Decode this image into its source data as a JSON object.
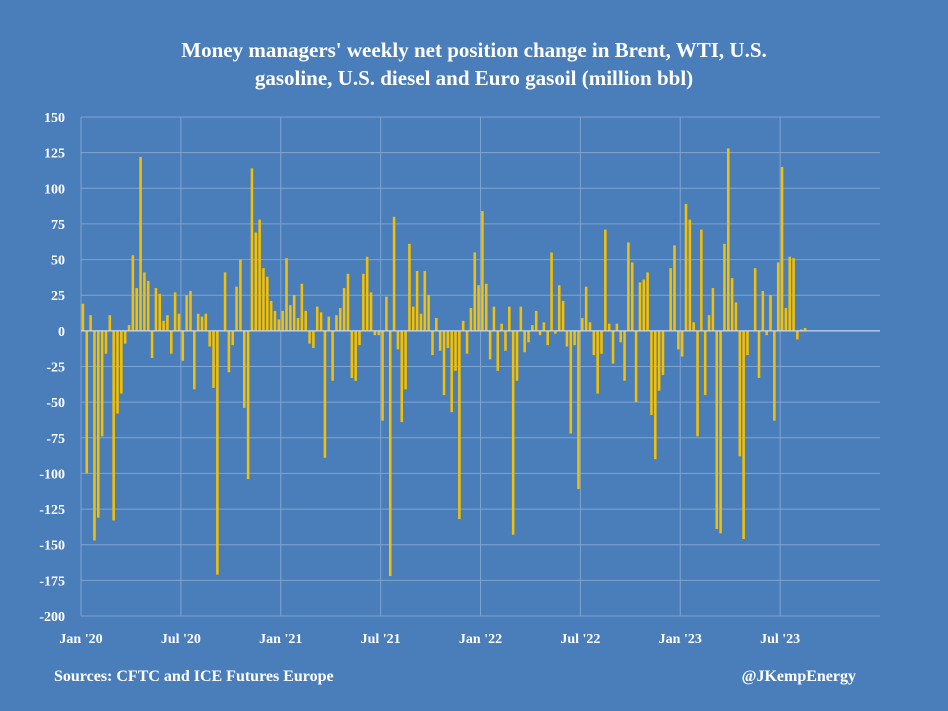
{
  "colors": {
    "background": "#4a7ebb",
    "bar": "#f5c000",
    "grid": "#7fa3cf",
    "zero_line": "#c9d7ea",
    "text": "#ffffff"
  },
  "footer": {
    "source": "Sources: CFTC and ICE Futures Europe",
    "handle": "@JKempEnergy"
  },
  "chart_data": {
    "type": "bar",
    "title_lines": [
      "Money managers' weekly net position change in Brent, WTI, U.S.",
      "gasoline, U.S. diesel and Euro gasoil (million bbl)"
    ],
    "xlabel": "",
    "ylabel": "",
    "ylim": [
      -200,
      150
    ],
    "yticks": [
      150,
      125,
      100,
      75,
      50,
      25,
      0,
      -25,
      -50,
      -75,
      -100,
      -125,
      -150,
      -175,
      -200
    ],
    "ytick_labels": [
      "150",
      "125",
      "100",
      "75",
      "50",
      "25",
      "0",
      "-25",
      "-50",
      "-75",
      "-100",
      "-125",
      "-150",
      "-175",
      "-200"
    ],
    "xticks": [
      {
        "label": "Jan '20",
        "week": 0
      },
      {
        "label": "Jul '20",
        "week": 26
      },
      {
        "label": "Jan '21",
        "week": 52
      },
      {
        "label": "Jul '21",
        "week": 78
      },
      {
        "label": "Jan '22",
        "week": 104
      },
      {
        "label": "Jul '22",
        "week": 130
      },
      {
        "label": "Jan '23",
        "week": 156
      },
      {
        "label": "Jul '23",
        "week": 182
      }
    ],
    "x_weeks_span": 208,
    "grid": true,
    "legend": "none",
    "series": [
      {
        "values": [
          19,
          -100,
          11,
          -147,
          -131,
          -74,
          -16,
          11,
          -133,
          -58,
          -44,
          -9,
          4,
          53,
          30,
          122,
          41,
          35,
          -19,
          30,
          26,
          7,
          11,
          -16,
          27,
          12,
          -21,
          25,
          28,
          -41,
          12,
          10,
          12,
          -11,
          -40,
          -171,
          0,
          41,
          -29,
          -10,
          31,
          50,
          -54,
          -104,
          114,
          69,
          78,
          44,
          38,
          21,
          14,
          8,
          14,
          51,
          18,
          25,
          9,
          33,
          14,
          -9,
          -12,
          17,
          13,
          -89,
          10,
          -35,
          11,
          16,
          30,
          40,
          -33,
          -35,
          -10,
          40,
          52,
          27,
          -3,
          -3,
          -63,
          24,
          -172,
          80,
          -13,
          -64,
          -41,
          61,
          17,
          42,
          12,
          42,
          25,
          -17,
          9,
          -14,
          -45,
          -12,
          -57,
          -28,
          -132,
          7,
          -16,
          16,
          55,
          32,
          84,
          33,
          -20,
          17,
          -28,
          5,
          -14,
          17,
          -143,
          -35,
          17,
          -15,
          -8,
          4,
          14,
          -3,
          6,
          -10,
          55,
          -2,
          32,
          21,
          -11,
          -72,
          -10,
          -111,
          9,
          31,
          6,
          -17,
          -44,
          -16,
          71,
          5,
          -23,
          5,
          -8,
          -35,
          62,
          48,
          -50,
          34,
          36,
          41,
          -59,
          -90,
          -42,
          -31,
          0,
          44,
          60,
          -13,
          -18,
          89,
          78,
          6,
          -74,
          71,
          -45,
          11,
          30,
          -139,
          -142,
          61,
          128,
          37,
          20,
          -88,
          -146,
          -17,
          0,
          44,
          -33,
          28,
          -3,
          25,
          -63,
          48,
          115,
          16,
          52,
          51,
          -6,
          1,
          2
        ]
      }
    ]
  }
}
